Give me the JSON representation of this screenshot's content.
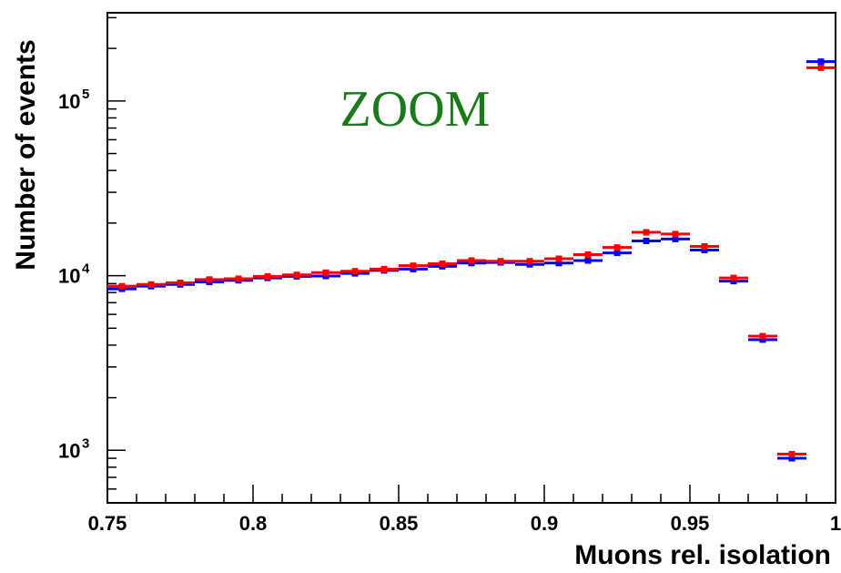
{
  "chart_data": {
    "type": "scatter",
    "title": "",
    "xlabel": "Muons rel. isolation",
    "ylabel": "Number of events",
    "xlim": [
      0.75,
      1.0
    ],
    "ylim": [
      500,
      320000
    ],
    "yscale": "log",
    "grid": false,
    "annotation": {
      "text": "ZOOM",
      "color": "#1a7a1a"
    },
    "x_ticks": [
      {
        "value": 0.75,
        "label": "0.75"
      },
      {
        "value": 0.8,
        "label": "0.8"
      },
      {
        "value": 0.85,
        "label": "0.85"
      },
      {
        "value": 0.9,
        "label": "0.9"
      },
      {
        "value": 0.95,
        "label": "0.95"
      },
      {
        "value": 1.0,
        "label": "1"
      }
    ],
    "y_ticks": [
      {
        "value": 1000,
        "base": "10",
        "exp": "3"
      },
      {
        "value": 10000,
        "base": "10",
        "exp": "4"
      },
      {
        "value": 100000,
        "base": "10",
        "exp": "5"
      }
    ],
    "bin_width": 0.01,
    "x": [
      0.755,
      0.765,
      0.775,
      0.785,
      0.795,
      0.805,
      0.815,
      0.825,
      0.835,
      0.845,
      0.855,
      0.865,
      0.875,
      0.885,
      0.895,
      0.905,
      0.915,
      0.925,
      0.935,
      0.945,
      0.955,
      0.965,
      0.975,
      0.985,
      0.995
    ],
    "series": [
      {
        "color": "#0000ff",
        "values": [
          8400,
          8700,
          8900,
          9200,
          9400,
          9700,
          9900,
          9950,
          10300,
          10700,
          10900,
          11300,
          11800,
          11900,
          11600,
          11800,
          12200,
          13500,
          15800,
          16200,
          14000,
          9300,
          4300,
          900,
          168000
        ]
      },
      {
        "color": "#ff0000",
        "values": [
          8700,
          8900,
          9100,
          9500,
          9600,
          9900,
          10100,
          10400,
          10600,
          10900,
          11400,
          11700,
          12200,
          12100,
          12100,
          12500,
          13200,
          14500,
          17700,
          17300,
          14700,
          9700,
          4500,
          950,
          155000
        ]
      }
    ]
  }
}
